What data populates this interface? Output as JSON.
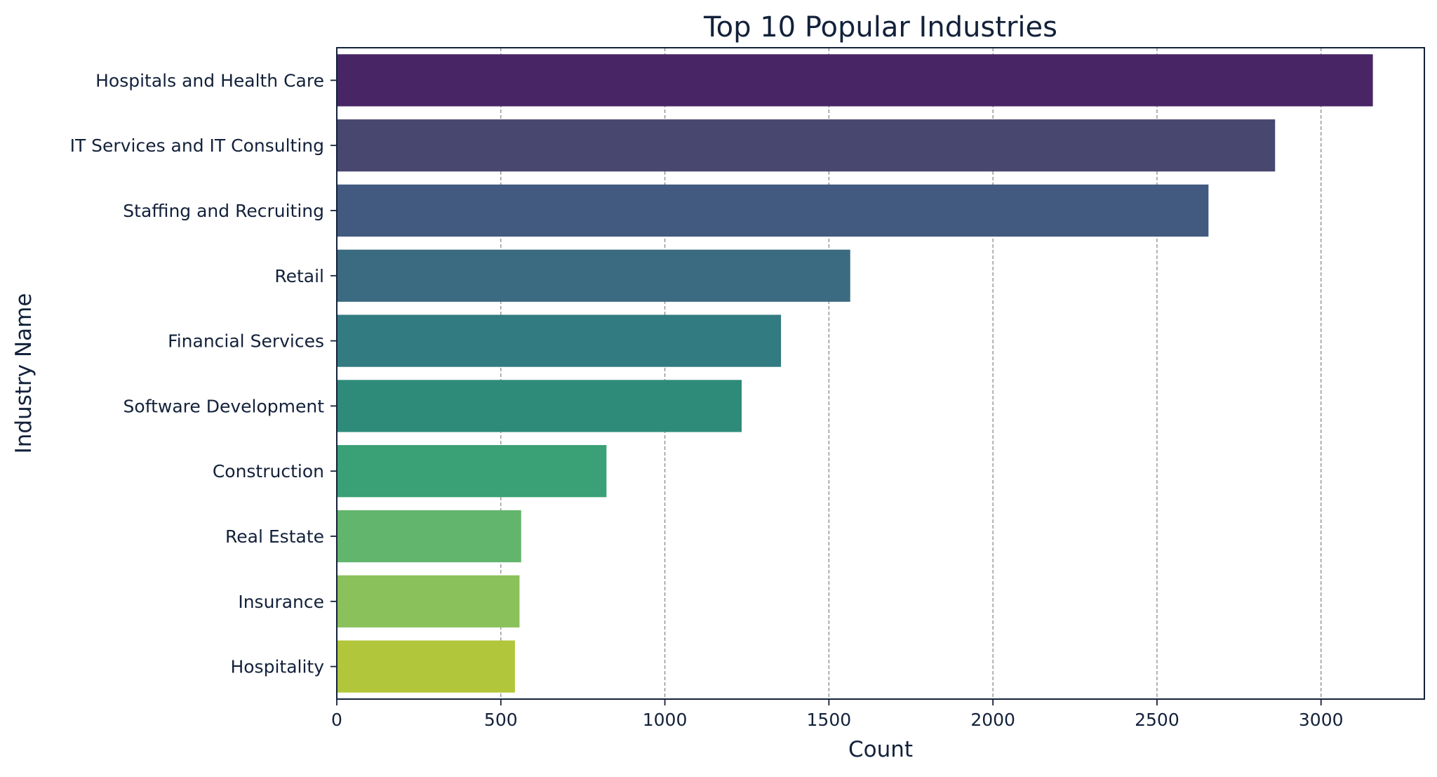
{
  "chart_data": {
    "type": "bar",
    "orientation": "horizontal",
    "title": "Top 10 Popular Industries",
    "xlabel": "Count",
    "ylabel": "Industry Name",
    "categories": [
      "Hospitals and Health Care",
      "IT Services and IT Consulting",
      "Staffing and Recruiting",
      "Retail",
      "Financial Services",
      "Software Development",
      "Construction",
      "Real Estate",
      "Insurance",
      "Hospitality"
    ],
    "values": [
      3158,
      2860,
      2657,
      1565,
      1354,
      1234,
      822,
      562,
      557,
      543
    ],
    "xlim": [
      0,
      3315
    ],
    "xticks": [
      0,
      500,
      1000,
      1500,
      2000,
      2500,
      3000
    ],
    "xtick_labels": [
      "0",
      "500",
      "1000",
      "1500",
      "2000",
      "2500",
      "3000"
    ],
    "grid": "x, dashed",
    "legend": "none",
    "colors": [
      "#482666",
      "#48476f",
      "#425a80",
      "#3b6b80",
      "#327b80",
      "#2e8b7a",
      "#3aa076",
      "#62b56c",
      "#8ac15a",
      "#b1c63a"
    ]
  }
}
